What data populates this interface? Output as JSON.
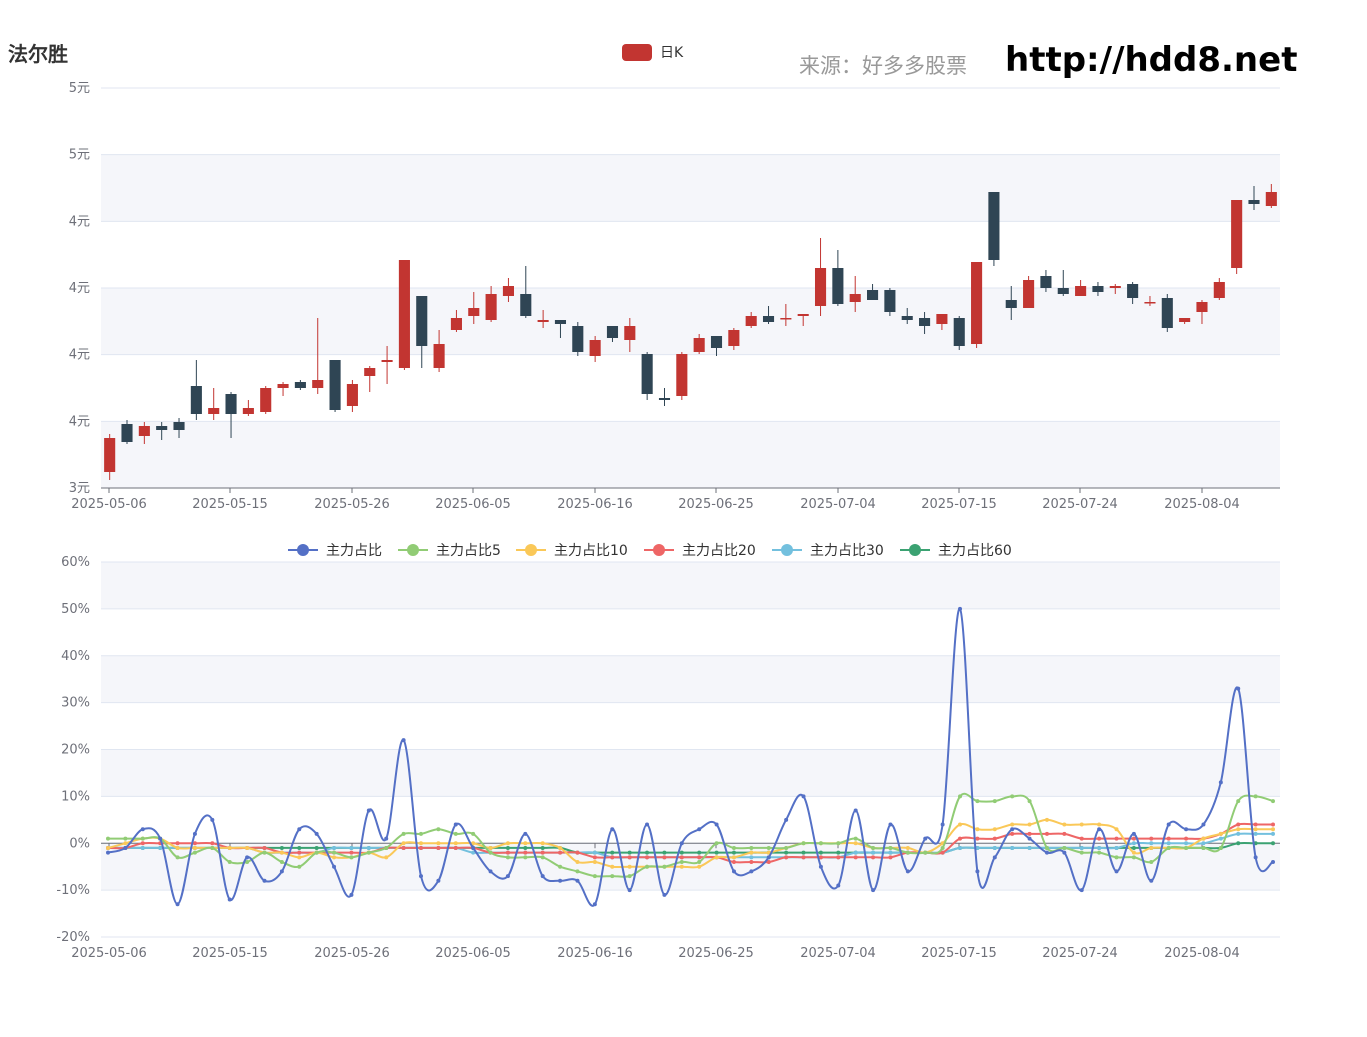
{
  "header": {
    "stock_name": "法尔胜",
    "source_label": "来源：好多多股票",
    "site_url": "http://hdd8.net"
  },
  "chart_data": [
    {
      "type": "candlestick",
      "legend": [
        "日K"
      ],
      "colors": {
        "up": "#c23531",
        "down": "#2f4554"
      },
      "y_ticks": [
        "3元",
        "4元",
        "4元",
        "4元",
        "4元",
        "5元",
        "5元"
      ],
      "ylim": [
        3.0,
        5.0
      ],
      "x_ticks": [
        "2025-05-06",
        "2025-05-15",
        "2025-05-26",
        "2025-06-05",
        "2025-06-16",
        "2025-06-25",
        "2025-07-04",
        "2025-07-15",
        "2025-07-24",
        "2025-08-04"
      ],
      "candles": [
        [
          3.08,
          3.25,
          3.04,
          3.27
        ],
        [
          3.32,
          3.23,
          3.22,
          3.34
        ],
        [
          3.26,
          3.31,
          3.22,
          3.33
        ],
        [
          3.31,
          3.29,
          3.24,
          3.33
        ],
        [
          3.33,
          3.29,
          3.25,
          3.35
        ],
        [
          3.51,
          3.37,
          3.34,
          3.64
        ],
        [
          3.37,
          3.4,
          3.34,
          3.5
        ],
        [
          3.47,
          3.37,
          3.25,
          3.48
        ],
        [
          3.37,
          3.4,
          3.36,
          3.44
        ],
        [
          3.38,
          3.5,
          3.37,
          3.51
        ],
        [
          3.5,
          3.52,
          3.46,
          3.53
        ],
        [
          3.53,
          3.5,
          3.49,
          3.54
        ],
        [
          3.5,
          3.54,
          3.47,
          3.85
        ],
        [
          3.64,
          3.39,
          3.38,
          3.64
        ],
        [
          3.41,
          3.52,
          3.38,
          3.54
        ],
        [
          3.56,
          3.6,
          3.48,
          3.61
        ],
        [
          3.63,
          3.64,
          3.52,
          3.71
        ],
        [
          3.6,
          4.14,
          3.59,
          4.14
        ],
        [
          3.96,
          3.71,
          3.6,
          3.96
        ],
        [
          3.6,
          3.72,
          3.58,
          3.79
        ],
        [
          3.79,
          3.85,
          3.78,
          3.89
        ],
        [
          3.86,
          3.9,
          3.82,
          3.98
        ],
        [
          3.84,
          3.97,
          3.83,
          4.01
        ],
        [
          3.96,
          4.01,
          3.93,
          4.05
        ],
        [
          3.97,
          3.86,
          3.85,
          4.11
        ],
        [
          3.83,
          3.84,
          3.8,
          3.89
        ],
        [
          3.84,
          3.82,
          3.75,
          3.84
        ],
        [
          3.81,
          3.68,
          3.66,
          3.83
        ],
        [
          3.66,
          3.74,
          3.63,
          3.76
        ],
        [
          3.81,
          3.75,
          3.73,
          3.81
        ],
        [
          3.74,
          3.81,
          3.68,
          3.85
        ],
        [
          3.67,
          3.47,
          3.44,
          3.68
        ],
        [
          3.45,
          3.44,
          3.41,
          3.5
        ],
        [
          3.46,
          3.67,
          3.44,
          3.68
        ],
        [
          3.68,
          3.75,
          3.67,
          3.77
        ],
        [
          3.76,
          3.7,
          3.66,
          3.76
        ],
        [
          3.71,
          3.79,
          3.69,
          3.8
        ],
        [
          3.81,
          3.86,
          3.8,
          3.88
        ],
        [
          3.86,
          3.83,
          3.82,
          3.91
        ],
        [
          3.85,
          3.85,
          3.81,
          3.92
        ],
        [
          3.86,
          3.87,
          3.81,
          3.87
        ],
        [
          3.91,
          4.1,
          3.86,
          4.25
        ],
        [
          4.1,
          3.92,
          3.91,
          4.19
        ],
        [
          3.93,
          3.97,
          3.88,
          4.06
        ],
        [
          3.99,
          3.94,
          3.94,
          4.02
        ],
        [
          3.99,
          3.88,
          3.86,
          4.0
        ],
        [
          3.86,
          3.84,
          3.82,
          3.9
        ],
        [
          3.85,
          3.81,
          3.77,
          3.88
        ],
        [
          3.82,
          3.87,
          3.79,
          3.87
        ],
        [
          3.85,
          3.71,
          3.69,
          3.86
        ],
        [
          3.72,
          4.13,
          3.7,
          4.13
        ],
        [
          4.48,
          4.14,
          4.11,
          4.48
        ],
        [
          3.94,
          3.9,
          3.84,
          4.01
        ],
        [
          3.9,
          4.04,
          3.9,
          4.06
        ],
        [
          4.06,
          4.0,
          3.98,
          4.09
        ],
        [
          4.0,
          3.97,
          3.96,
          4.09
        ],
        [
          3.96,
          4.01,
          3.96,
          4.04
        ],
        [
          4.01,
          3.98,
          3.96,
          4.03
        ],
        [
          4.0,
          4.01,
          3.97,
          4.02
        ],
        [
          4.02,
          3.95,
          3.92,
          4.03
        ],
        [
          3.93,
          3.93,
          3.91,
          3.96
        ],
        [
          3.95,
          3.8,
          3.78,
          3.97
        ],
        [
          3.83,
          3.85,
          3.82,
          3.85
        ],
        [
          3.88,
          3.93,
          3.82,
          3.94
        ],
        [
          3.95,
          4.03,
          3.94,
          4.05
        ],
        [
          4.1,
          4.44,
          4.07,
          4.44
        ],
        [
          4.44,
          4.42,
          4.39,
          4.51
        ],
        [
          4.41,
          4.48,
          4.4,
          4.52
        ]
      ]
    },
    {
      "type": "line",
      "ylim": [
        -20,
        60
      ],
      "y_ticks": [
        "-20%",
        "-10%",
        "0%",
        "10%",
        "20%",
        "30%",
        "40%",
        "50%",
        "60%"
      ],
      "x_ticks": [
        "2025-05-06",
        "2025-05-15",
        "2025-05-26",
        "2025-06-05",
        "2025-06-16",
        "2025-06-25",
        "2025-07-04",
        "2025-07-15",
        "2025-07-24",
        "2025-08-04"
      ],
      "series": [
        {
          "name": "主力占比",
          "color": "#5470c6",
          "values": [
            -2,
            -1,
            3,
            1,
            -13,
            2,
            5,
            -12,
            -3,
            -8,
            -6,
            3,
            2,
            -5,
            -11,
            7,
            1,
            22,
            -7,
            -8,
            4,
            -1,
            -6,
            -7,
            2,
            -7,
            -8,
            -8,
            -13,
            3,
            -10,
            4,
            -11,
            0,
            3,
            4,
            -6,
            -6,
            -3,
            5,
            10,
            -5,
            -9,
            7,
            -10,
            4,
            -6,
            1,
            4,
            50,
            -6,
            -3,
            3,
            1,
            -2,
            -2,
            -10,
            3,
            -6,
            2,
            -8,
            4,
            3,
            4,
            13,
            33,
            -3,
            -4
          ]
        },
        {
          "name": "主力占比5",
          "color": "#91cc75",
          "values": [
            1,
            1,
            1,
            1,
            -3,
            -2,
            -1,
            -4,
            -4,
            -2,
            -4,
            -5,
            -2,
            -2,
            -3,
            -2,
            -1,
            2,
            2,
            3,
            2,
            2,
            -2,
            -3,
            -3,
            -3,
            -5,
            -6,
            -7,
            -7,
            -7,
            -5,
            -5,
            -4,
            -4,
            0,
            -1,
            -1,
            -1,
            -1,
            0,
            0,
            0,
            1,
            -1,
            -1,
            -2,
            -2,
            -1,
            10,
            9,
            9,
            10,
            9,
            -1,
            -1,
            -2,
            -2,
            -3,
            -3,
            -4,
            -1,
            -1,
            -1,
            -1,
            9,
            10,
            9
          ]
        },
        {
          "name": "主力占比10",
          "color": "#fac858",
          "values": [
            -1,
            0,
            1,
            1,
            -1,
            -1,
            -1,
            -1,
            -1,
            -2,
            -2,
            -3,
            -2,
            -3,
            -3,
            -2,
            -3,
            0,
            0,
            0,
            0,
            0,
            -1,
            0,
            0,
            0,
            -1,
            -4,
            -4,
            -5,
            -5,
            -5,
            -5,
            -5,
            -5,
            -3,
            -3,
            -2,
            -2,
            -1,
            0,
            0,
            0,
            0,
            -1,
            -1,
            -1,
            -2,
            0,
            4,
            3,
            3,
            4,
            4,
            5,
            4,
            4,
            4,
            3,
            -2,
            -1,
            -1,
            -1,
            1,
            2,
            3,
            3,
            3
          ]
        },
        {
          "name": "主力占比20",
          "color": "#ee6666",
          "values": [
            -1,
            -1,
            0,
            0,
            0,
            0,
            0,
            -1,
            -1,
            -1,
            -2,
            -2,
            -2,
            -2,
            -2,
            -2,
            -1,
            -1,
            -1,
            -1,
            -1,
            -1,
            -2,
            -2,
            -2,
            -2,
            -2,
            -2,
            -3,
            -3,
            -3,
            -3,
            -3,
            -3,
            -3,
            -3,
            -4,
            -4,
            -4,
            -3,
            -3,
            -3,
            -3,
            -3,
            -3,
            -3,
            -2,
            -2,
            -2,
            1,
            1,
            1,
            2,
            2,
            2,
            2,
            1,
            1,
            1,
            1,
            1,
            1,
            1,
            1,
            2,
            4,
            4,
            4
          ]
        },
        {
          "name": "主力占比30",
          "color": "#73c0de",
          "values": [
            -1,
            -1,
            -1,
            -1,
            -1,
            -1,
            -1,
            -1,
            -1,
            -2,
            -2,
            -2,
            -2,
            -1,
            -1,
            -1,
            -1,
            -1,
            -1,
            -1,
            -1,
            -2,
            -2,
            -2,
            -2,
            -2,
            -2,
            -2,
            -2,
            -3,
            -3,
            -3,
            -3,
            -3,
            -3,
            -3,
            -3,
            -3,
            -3,
            -3,
            -3,
            -3,
            -3,
            -2,
            -2,
            -2,
            -2,
            -2,
            -2,
            -1,
            -1,
            -1,
            -1,
            -1,
            -1,
            -1,
            -1,
            -1,
            -1,
            0,
            0,
            0,
            0,
            0,
            1,
            2,
            2,
            2
          ]
        },
        {
          "name": "主力占比60",
          "color": "#3ba272",
          "values": [
            -1,
            -1,
            -1,
            -1,
            -1,
            -1,
            -1,
            -1,
            -1,
            -1,
            -1,
            -1,
            -1,
            -1,
            -1,
            -1,
            -1,
            -1,
            -1,
            -1,
            -1,
            -1,
            -1,
            -1,
            -1,
            -1,
            -1,
            -2,
            -2,
            -2,
            -2,
            -2,
            -2,
            -2,
            -2,
            -2,
            -2,
            -2,
            -2,
            -2,
            -2,
            -2,
            -2,
            -2,
            -2,
            -2,
            -2,
            -2,
            -2,
            -1,
            -1,
            -1,
            -1,
            -1,
            -1,
            -1,
            -1,
            -1,
            -1,
            -1,
            -1,
            -1,
            -1,
            -1,
            -1,
            0,
            0,
            0
          ]
        }
      ]
    }
  ]
}
